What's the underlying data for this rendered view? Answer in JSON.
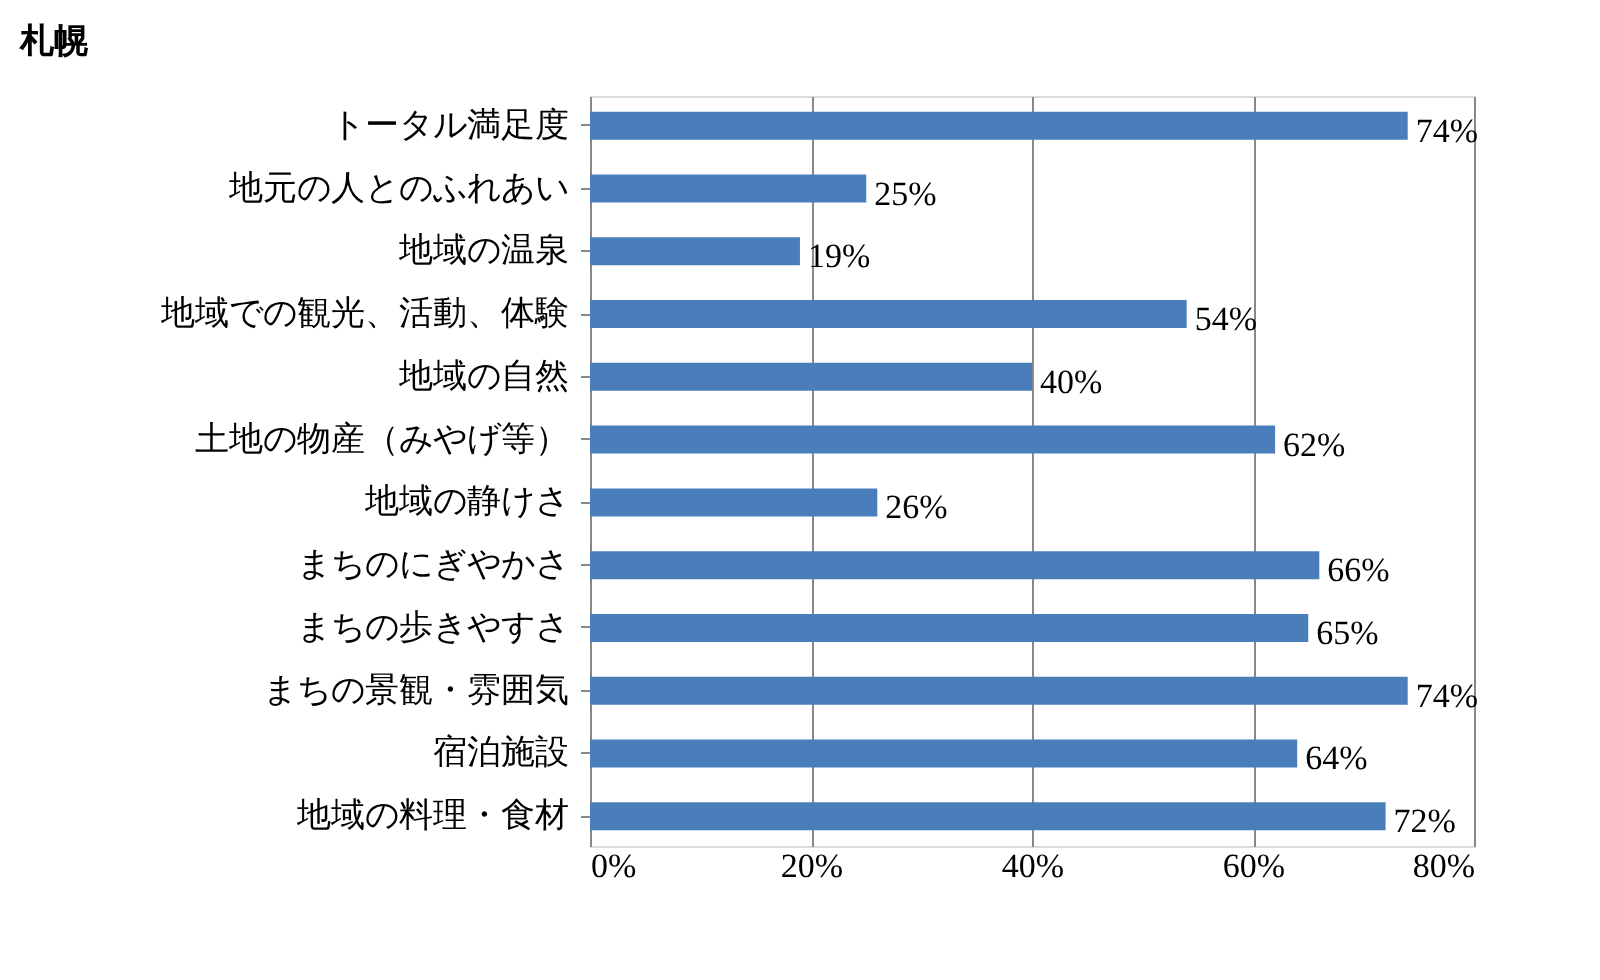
{
  "chart_data": {
    "type": "bar",
    "orientation": "horizontal",
    "title": "札幌",
    "categories": [
      "トータル満足度",
      "地元の人とのふれあい",
      "地域の温泉",
      "地域での観光、活動、体験",
      "地域の自然",
      "土地の物産（みやげ等）",
      "地域の静けさ",
      "まちのにぎやかさ",
      "まちの歩きやすさ",
      "まちの景観・雰囲気",
      "宿泊施設",
      "地域の料理・食材"
    ],
    "values": [
      74,
      25,
      19,
      54,
      40,
      62,
      26,
      66,
      65,
      74,
      64,
      72
    ],
    "value_labels": [
      "74%",
      "25%",
      "19%",
      "54%",
      "40%",
      "62%",
      "26%",
      "66%",
      "65%",
      "74%",
      "64%",
      "72%"
    ],
    "color": "#4a7ebb",
    "xlim": [
      0,
      80
    ],
    "xticks": [
      {
        "value": 0,
        "label": "0%"
      },
      {
        "value": 20,
        "label": "20%"
      },
      {
        "value": 40,
        "label": "40%"
      },
      {
        "value": 60,
        "label": "60%"
      },
      {
        "value": 80,
        "label": "80%"
      }
    ],
    "grid": "x"
  }
}
